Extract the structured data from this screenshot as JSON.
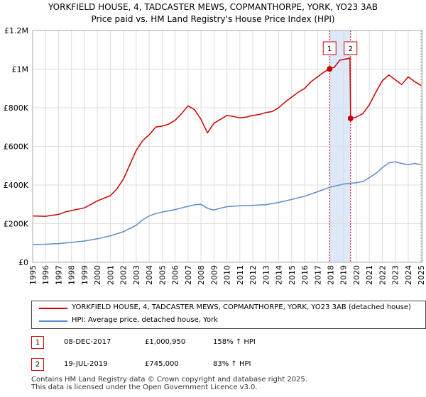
{
  "header": {
    "title_line1": "YORKFIELD HOUSE, 4, TADCASTER MEWS, COPMANTHORPE, YORK, YO23 3AB",
    "title_line2": "Price paid vs. HM Land Registry's House Price Index (HPI)"
  },
  "chart_data": {
    "type": "line",
    "title": "YORKFIELD HOUSE, 4, TADCASTER MEWS, COPMANTHORPE, YORK, YO23 3AB",
    "subtitle": "Price paid vs. HM Land Registry's House Price Index (HPI)",
    "xlabel": "",
    "ylabel": "",
    "xlim": [
      1995,
      2025.1
    ],
    "ylim": [
      0,
      1200000
    ],
    "grid": true,
    "y_ticks": [
      {
        "value": 0,
        "label": "£0"
      },
      {
        "value": 200000,
        "label": "£200K"
      },
      {
        "value": 400000,
        "label": "£400K"
      },
      {
        "value": 600000,
        "label": "£600K"
      },
      {
        "value": 800000,
        "label": "£800K"
      },
      {
        "value": 1000000,
        "label": "£1M"
      },
      {
        "value": 1200000,
        "label": "£1.2M"
      }
    ],
    "x_ticks": [
      "1995",
      "1996",
      "1997",
      "1998",
      "1999",
      "2000",
      "2001",
      "2002",
      "2003",
      "2004",
      "2005",
      "2006",
      "2007",
      "2008",
      "2009",
      "2010",
      "2011",
      "2012",
      "2013",
      "2014",
      "2015",
      "2016",
      "2017",
      "2018",
      "2019",
      "2020",
      "2021",
      "2022",
      "2023",
      "2024",
      "2025"
    ],
    "shaded_span": {
      "from": 2017.93,
      "to": 2019.55,
      "color": "#dde8f8"
    },
    "series": [
      {
        "name": "YORKFIELD HOUSE, 4, TADCASTER MEWS, COPMANTHORPE, YORK, YO23 3AB (detached house)",
        "color": "#cc0000",
        "x": [
          1995.0,
          1996.0,
          1997.0,
          1997.6,
          1998.0,
          1999.0,
          2000.0,
          2001.0,
          2001.5,
          2002.0,
          2002.5,
          2003.0,
          2003.5,
          2004.0,
          2004.5,
          2005.0,
          2005.5,
          2006.0,
          2006.5,
          2007.0,
          2007.5,
          2008.0,
          2008.5,
          2009.0,
          2009.5,
          2010.0,
          2010.5,
          2011.0,
          2011.5,
          2012.0,
          2012.5,
          2013.0,
          2013.5,
          2014.0,
          2014.5,
          2015.0,
          2015.5,
          2016.0,
          2016.5,
          2017.0,
          2017.5,
          2017.93,
          2018.3,
          2018.7,
          2019.0,
          2019.4,
          2019.5,
          2019.55,
          2019.8,
          2020.0,
          2020.5,
          2021.0,
          2021.5,
          2022.0,
          2022.5,
          2023.0,
          2023.5,
          2024.0,
          2024.5,
          2025.0
        ],
        "y": [
          240000,
          238000,
          248000,
          262000,
          268000,
          282000,
          318000,
          345000,
          380000,
          430000,
          505000,
          580000,
          630000,
          660000,
          700000,
          705000,
          715000,
          735000,
          770000,
          810000,
          790000,
          740000,
          670000,
          720000,
          740000,
          760000,
          755000,
          748000,
          752000,
          760000,
          765000,
          775000,
          780000,
          800000,
          830000,
          855000,
          880000,
          900000,
          935000,
          960000,
          985000,
          1000950,
          1010000,
          1045000,
          1050000,
          1055000,
          1058000,
          745000,
          748000,
          752000,
          770000,
          815000,
          880000,
          940000,
          970000,
          945000,
          920000,
          960000,
          935000,
          915000
        ]
      },
      {
        "name": "HPI: Average price, detached house, York",
        "color": "#5b8cc8",
        "x": [
          1995.0,
          1996.0,
          1997.0,
          1998.0,
          1999.0,
          2000.0,
          2001.0,
          2002.0,
          2003.0,
          2003.5,
          2004.0,
          2004.5,
          2005.0,
          2006.0,
          2007.0,
          2007.5,
          2008.0,
          2008.5,
          2009.0,
          2009.5,
          2010.0,
          2011.0,
          2012.0,
          2013.0,
          2014.0,
          2015.0,
          2016.0,
          2017.0,
          2017.93,
          2018.5,
          2019.0,
          2019.55,
          2020.0,
          2020.5,
          2021.0,
          2021.5,
          2022.0,
          2022.5,
          2023.0,
          2023.5,
          2024.0,
          2024.5,
          2025.0
        ],
        "y": [
          93000,
          93500,
          97000,
          103000,
          110000,
          122000,
          137000,
          158000,
          192000,
          220000,
          240000,
          252000,
          260000,
          273000,
          290000,
          298000,
          300000,
          280000,
          270000,
          280000,
          288000,
          293000,
          295000,
          298000,
          310000,
          325000,
          342000,
          365000,
          388000,
          397000,
          405000,
          409000,
          412000,
          418000,
          438000,
          460000,
          490000,
          515000,
          520000,
          512000,
          505000,
          512000,
          505000
        ]
      }
    ],
    "annotations": [
      {
        "label": "1",
        "x": 2017.93,
        "y": 1000950
      },
      {
        "label": "2",
        "x": 2019.55,
        "y": 745000
      }
    ]
  },
  "legend": {
    "property_label": "YORKFIELD HOUSE, 4, TADCASTER MEWS, COPMANTHORPE, YORK, YO23 3AB (detached house)",
    "hpi_label": "HPI: Average price, detached house, York"
  },
  "transactions": [
    {
      "num": "1",
      "date": "08-DEC-2017",
      "price": "£1,000,950",
      "hpi": "158% ↑ HPI"
    },
    {
      "num": "2",
      "date": "19-JUL-2019",
      "price": "£745,000",
      "hpi": "83% ↑ HPI"
    }
  ],
  "footer": {
    "line1": "Contains HM Land Registry data © Crown copyright and database right 2025.",
    "line2": "This data is licensed under the Open Government Licence v3.0."
  },
  "colors": {
    "property": "#cc0000",
    "hpi": "#5b8cc8",
    "grid": "#dddddd",
    "shade": "#dde8f8"
  }
}
